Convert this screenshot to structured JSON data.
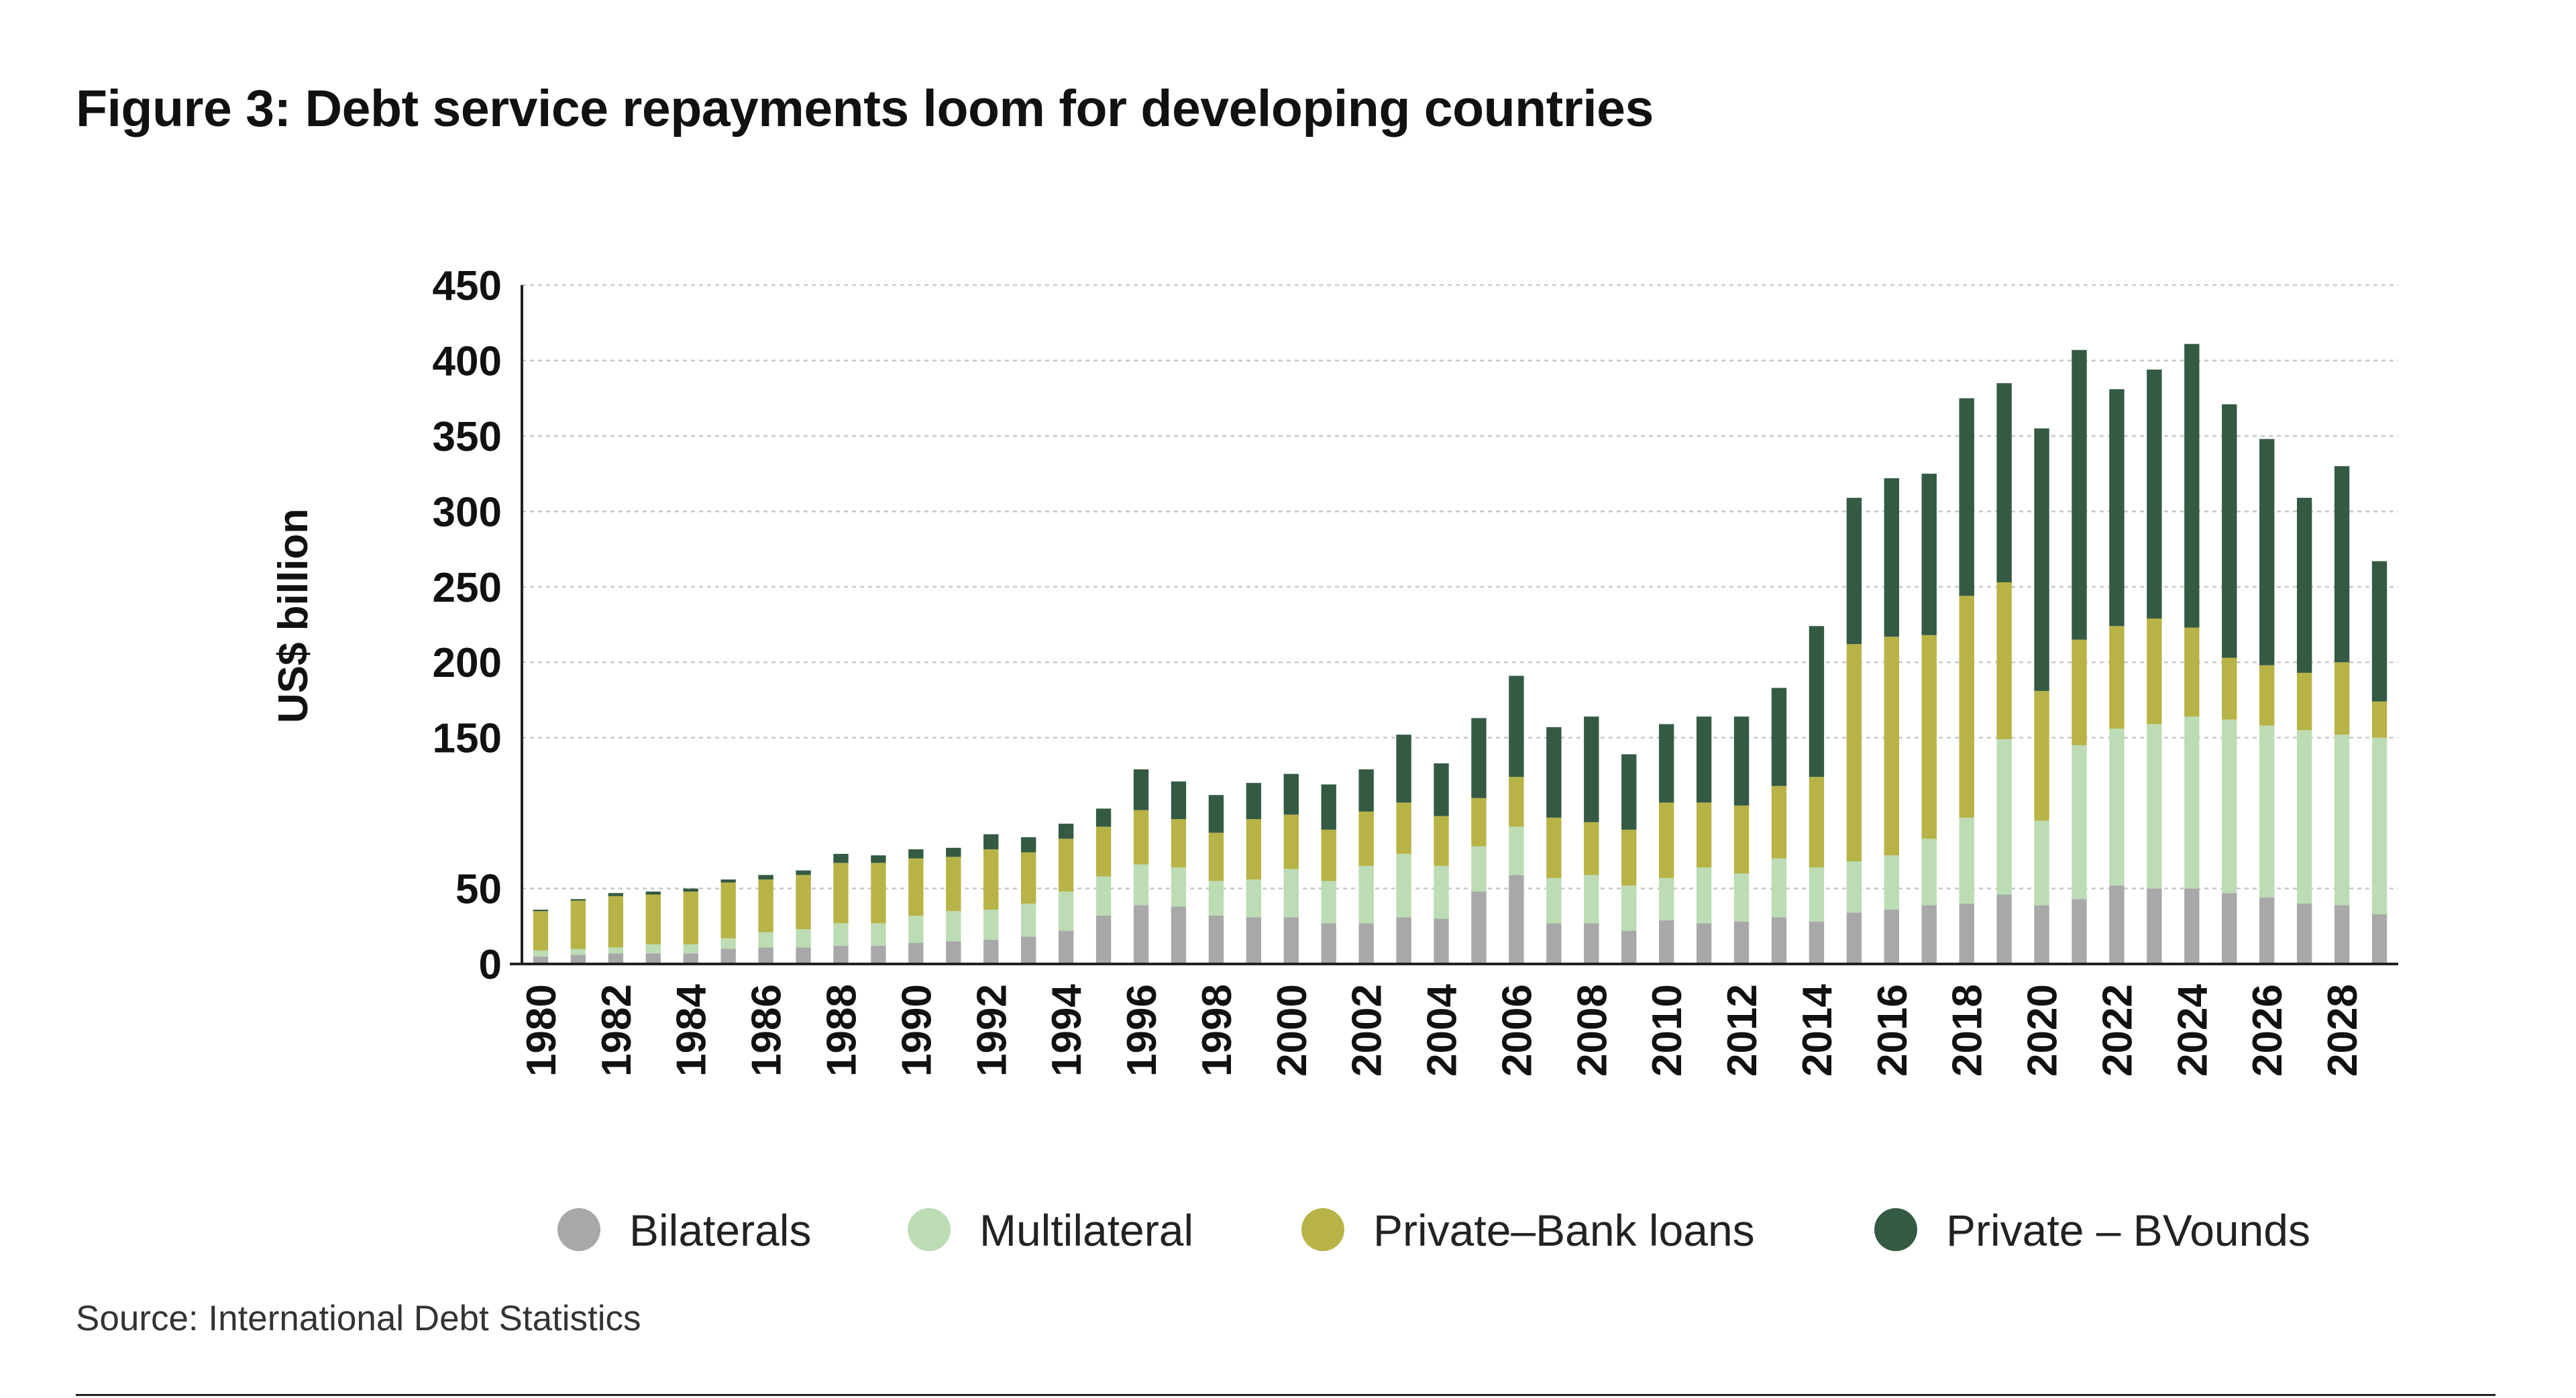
{
  "title": "Figure 3: Debt service repayments loom for developing countries",
  "source": "Source: International Debt Statistics",
  "colors": {
    "bilaterals": "#a8a8a8",
    "multilateral": "#bcdcb4",
    "bank": "#b7b347",
    "bonds": "#345a43",
    "grid": "#c8c8c8",
    "axis": "#222222"
  },
  "chart_data": {
    "type": "bar",
    "stacked": true,
    "ylabel": "US$ billion",
    "xlabel": "",
    "ylim": [
      0,
      450
    ],
    "yticks": [
      0,
      50,
      150,
      200,
      250,
      300,
      350,
      400,
      450
    ],
    "xtick_step": 2,
    "grid": true,
    "legend_position": "bottom",
    "categories": [
      1980,
      1981,
      1982,
      1983,
      1984,
      1985,
      1986,
      1987,
      1988,
      1989,
      1990,
      1991,
      1992,
      1993,
      1994,
      1995,
      1996,
      1997,
      1998,
      1999,
      2000,
      2001,
      2002,
      2003,
      2004,
      2005,
      2006,
      2007,
      2008,
      2009,
      2010,
      2011,
      2012,
      2013,
      2014,
      2015,
      2016,
      2017,
      2018,
      2019,
      2020,
      2021,
      2022,
      2023,
      2024,
      2025,
      2026,
      2027,
      2028,
      2029
    ],
    "series": [
      {
        "name": "Bilaterals",
        "color_key": "bilaterals",
        "values": [
          5,
          6,
          7,
          7,
          7,
          10,
          11,
          11,
          12,
          12,
          14,
          15,
          16,
          18,
          22,
          32,
          39,
          38,
          32,
          31,
          31,
          27,
          27,
          31,
          30,
          48,
          59,
          27,
          27,
          22,
          29,
          27,
          28,
          31,
          28,
          34,
          36,
          39,
          40,
          46,
          39,
          43,
          52,
          50,
          50,
          47,
          44,
          40,
          39,
          33
        ]
      },
      {
        "name": "Multilateral",
        "color_key": "multilateral",
        "values": [
          4,
          4,
          4,
          6,
          6,
          7,
          10,
          12,
          15,
          15,
          18,
          20,
          20,
          22,
          26,
          26,
          27,
          26,
          23,
          25,
          32,
          28,
          38,
          42,
          35,
          30,
          32,
          30,
          32,
          30,
          28,
          37,
          32,
          39,
          36,
          34,
          36,
          44,
          57,
          103,
          56,
          102,
          104,
          109,
          114,
          115,
          114,
          115,
          113,
          117
        ]
      },
      {
        "name": "Private–Bank loans",
        "color_key": "bank",
        "values": [
          26,
          32,
          34,
          33,
          35,
          37,
          35,
          36,
          40,
          40,
          38,
          36,
          40,
          34,
          35,
          33,
          36,
          32,
          32,
          40,
          36,
          34,
          36,
          34,
          33,
          32,
          33,
          40,
          35,
          37,
          50,
          43,
          45,
          48,
          60,
          144,
          145,
          135,
          147,
          104,
          86,
          70,
          68,
          70,
          59,
          41,
          40,
          38,
          48,
          24
        ]
      },
      {
        "name": "Private – BVounds",
        "color_key": "bonds",
        "values": [
          1,
          1,
          2,
          2,
          2,
          2,
          3,
          3,
          6,
          5,
          6,
          6,
          10,
          10,
          10,
          12,
          27,
          25,
          25,
          24,
          27,
          30,
          28,
          45,
          35,
          53,
          67,
          60,
          70,
          50,
          52,
          57,
          59,
          65,
          100,
          97,
          105,
          107,
          131,
          132,
          174,
          192,
          157,
          165,
          188,
          168,
          150,
          116,
          130,
          93
        ]
      }
    ]
  }
}
